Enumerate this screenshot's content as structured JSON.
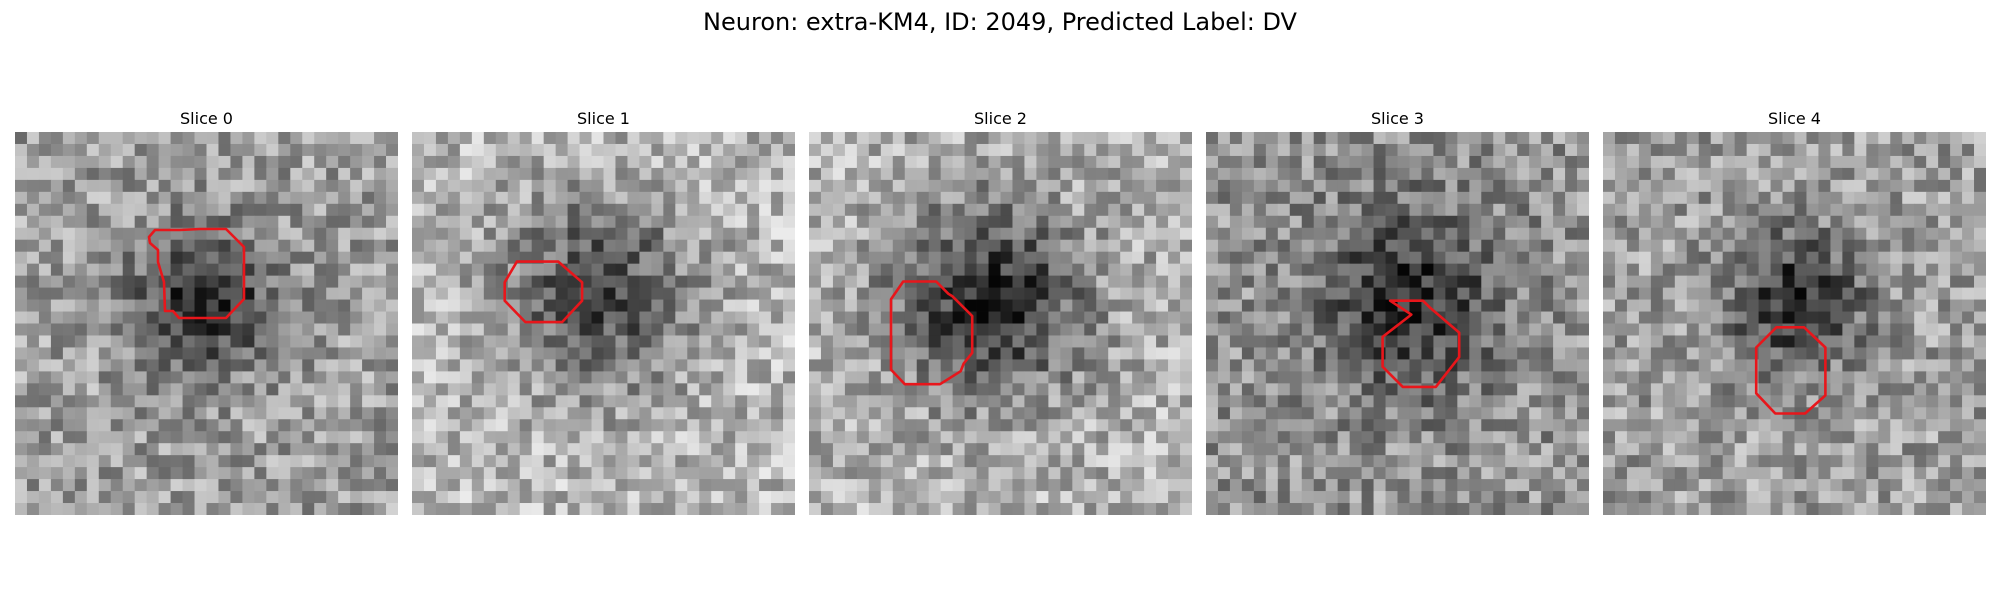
{
  "figure": {
    "title": "Neuron: extra-KM4, ID: 2049, Predicted Label: DV"
  },
  "colors": {
    "contour": "#e8161b"
  },
  "panels": [
    {
      "title": "Slice 0"
    },
    {
      "title": "Slice 1"
    },
    {
      "title": "Slice 2"
    },
    {
      "title": "Slice 3"
    },
    {
      "title": "Slice 4"
    }
  ]
}
